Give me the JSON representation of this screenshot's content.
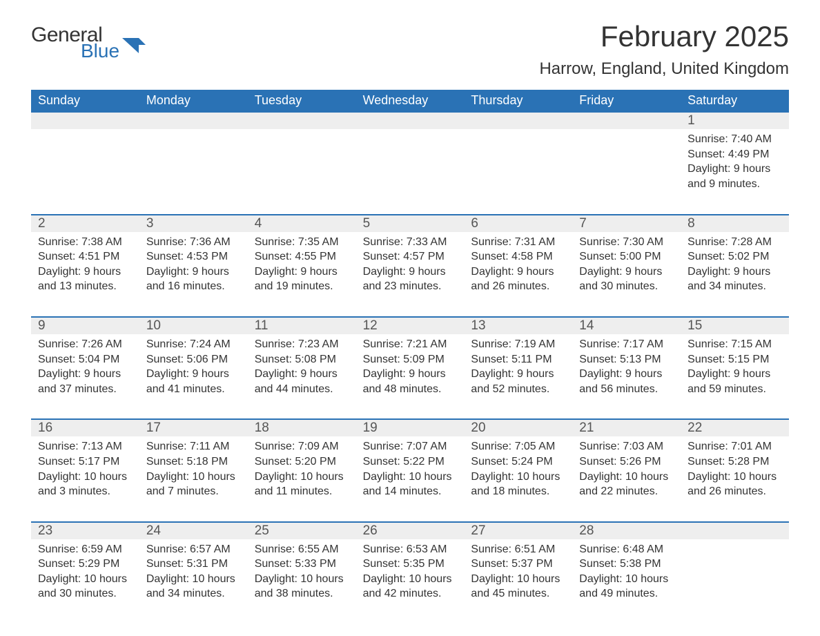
{
  "logo": {
    "word1": "General",
    "word2": "Blue",
    "mark_color": "#2a72b5"
  },
  "title": "February 2025",
  "location": "Harrow, England, United Kingdom",
  "colors": {
    "header_bg": "#2a72b5",
    "header_text": "#ffffff",
    "row_stripe": "#eeeeee",
    "row_border": "#2a72b5",
    "body_text": "#333333",
    "daynum_text": "#555555",
    "background": "#ffffff"
  },
  "typography": {
    "title_fontsize": 42,
    "location_fontsize": 24,
    "weekday_fontsize": 18,
    "daynum_fontsize": 19,
    "detail_fontsize": 16
  },
  "weekdays": [
    "Sunday",
    "Monday",
    "Tuesday",
    "Wednesday",
    "Thursday",
    "Friday",
    "Saturday"
  ],
  "labels": {
    "sunrise": "Sunrise:",
    "sunset": "Sunset:",
    "daylight": "Daylight:"
  },
  "weeks": [
    [
      null,
      null,
      null,
      null,
      null,
      null,
      {
        "n": "1",
        "sunrise": "7:40 AM",
        "sunset": "4:49 PM",
        "daylight": "9 hours and 9 minutes."
      }
    ],
    [
      {
        "n": "2",
        "sunrise": "7:38 AM",
        "sunset": "4:51 PM",
        "daylight": "9 hours and 13 minutes."
      },
      {
        "n": "3",
        "sunrise": "7:36 AM",
        "sunset": "4:53 PM",
        "daylight": "9 hours and 16 minutes."
      },
      {
        "n": "4",
        "sunrise": "7:35 AM",
        "sunset": "4:55 PM",
        "daylight": "9 hours and 19 minutes."
      },
      {
        "n": "5",
        "sunrise": "7:33 AM",
        "sunset": "4:57 PM",
        "daylight": "9 hours and 23 minutes."
      },
      {
        "n": "6",
        "sunrise": "7:31 AM",
        "sunset": "4:58 PM",
        "daylight": "9 hours and 26 minutes."
      },
      {
        "n": "7",
        "sunrise": "7:30 AM",
        "sunset": "5:00 PM",
        "daylight": "9 hours and 30 minutes."
      },
      {
        "n": "8",
        "sunrise": "7:28 AM",
        "sunset": "5:02 PM",
        "daylight": "9 hours and 34 minutes."
      }
    ],
    [
      {
        "n": "9",
        "sunrise": "7:26 AM",
        "sunset": "5:04 PM",
        "daylight": "9 hours and 37 minutes."
      },
      {
        "n": "10",
        "sunrise": "7:24 AM",
        "sunset": "5:06 PM",
        "daylight": "9 hours and 41 minutes."
      },
      {
        "n": "11",
        "sunrise": "7:23 AM",
        "sunset": "5:08 PM",
        "daylight": "9 hours and 44 minutes."
      },
      {
        "n": "12",
        "sunrise": "7:21 AM",
        "sunset": "5:09 PM",
        "daylight": "9 hours and 48 minutes."
      },
      {
        "n": "13",
        "sunrise": "7:19 AM",
        "sunset": "5:11 PM",
        "daylight": "9 hours and 52 minutes."
      },
      {
        "n": "14",
        "sunrise": "7:17 AM",
        "sunset": "5:13 PM",
        "daylight": "9 hours and 56 minutes."
      },
      {
        "n": "15",
        "sunrise": "7:15 AM",
        "sunset": "5:15 PM",
        "daylight": "9 hours and 59 minutes."
      }
    ],
    [
      {
        "n": "16",
        "sunrise": "7:13 AM",
        "sunset": "5:17 PM",
        "daylight": "10 hours and 3 minutes."
      },
      {
        "n": "17",
        "sunrise": "7:11 AM",
        "sunset": "5:18 PM",
        "daylight": "10 hours and 7 minutes."
      },
      {
        "n": "18",
        "sunrise": "7:09 AM",
        "sunset": "5:20 PM",
        "daylight": "10 hours and 11 minutes."
      },
      {
        "n": "19",
        "sunrise": "7:07 AM",
        "sunset": "5:22 PM",
        "daylight": "10 hours and 14 minutes."
      },
      {
        "n": "20",
        "sunrise": "7:05 AM",
        "sunset": "5:24 PM",
        "daylight": "10 hours and 18 minutes."
      },
      {
        "n": "21",
        "sunrise": "7:03 AM",
        "sunset": "5:26 PM",
        "daylight": "10 hours and 22 minutes."
      },
      {
        "n": "22",
        "sunrise": "7:01 AM",
        "sunset": "5:28 PM",
        "daylight": "10 hours and 26 minutes."
      }
    ],
    [
      {
        "n": "23",
        "sunrise": "6:59 AM",
        "sunset": "5:29 PM",
        "daylight": "10 hours and 30 minutes."
      },
      {
        "n": "24",
        "sunrise": "6:57 AM",
        "sunset": "5:31 PM",
        "daylight": "10 hours and 34 minutes."
      },
      {
        "n": "25",
        "sunrise": "6:55 AM",
        "sunset": "5:33 PM",
        "daylight": "10 hours and 38 minutes."
      },
      {
        "n": "26",
        "sunrise": "6:53 AM",
        "sunset": "5:35 PM",
        "daylight": "10 hours and 42 minutes."
      },
      {
        "n": "27",
        "sunrise": "6:51 AM",
        "sunset": "5:37 PM",
        "daylight": "10 hours and 45 minutes."
      },
      {
        "n": "28",
        "sunrise": "6:48 AM",
        "sunset": "5:38 PM",
        "daylight": "10 hours and 49 minutes."
      },
      null
    ]
  ]
}
